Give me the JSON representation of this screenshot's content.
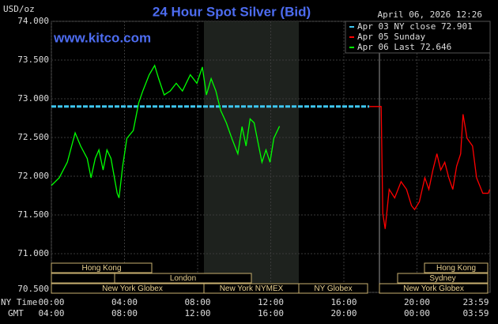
{
  "chart_data": {
    "type": "line",
    "title": "24 Hour Spot Silver (Bid)",
    "unit_label": "USD/oz",
    "timestamp": "April 06, 2026 12:26",
    "site": "www.kitco.com",
    "xlim": [
      0,
      24
    ],
    "ylim": [
      70.5,
      74
    ],
    "yticks": [
      {
        "value": 70.5,
        "label": "70.500"
      },
      {
        "value": 71,
        "label": "71.000"
      },
      {
        "value": 71.5,
        "label": "71.500"
      },
      {
        "value": 72,
        "label": "72.000"
      },
      {
        "value": 72.5,
        "label": "72.500"
      },
      {
        "value": 73,
        "label": "73.000"
      },
      {
        "value": 73.5,
        "label": "73.500"
      },
      {
        "value": 74,
        "label": "74.000"
      }
    ],
    "xticks": [
      {
        "value": 0,
        "label": "00:00"
      },
      {
        "value": 4,
        "label": "04:00"
      },
      {
        "value": 8,
        "label": "08:00"
      },
      {
        "value": 12,
        "label": "12:00"
      },
      {
        "value": 16,
        "label": "16:00"
      },
      {
        "value": 20,
        "label": "20:00"
      },
      {
        "value": 23.983,
        "label": "23:59"
      }
    ],
    "xticks_gmt": [
      "04:00",
      "08:00",
      "12:00",
      "16:00",
      "20:00",
      "00:00",
      "03:59"
    ],
    "x_axis_labels": [
      "NY Time",
      "GMT"
    ],
    "sessions": [
      "Hong Kong",
      "London",
      "New York Globex",
      "New York NYMEX",
      "NY Globex",
      "Hong Kong",
      "Sydney",
      "New York Globex"
    ],
    "series": [
      {
        "name": "Apr 03 NY close 72.901",
        "color": "#3ec6f0",
        "dashed": true,
        "x": [
          0,
          17.39
        ],
        "values": [
          72.901,
          72.901
        ]
      },
      {
        "name": "Apr 05 Sunday",
        "color": "#ff0000",
        "dashed": false,
        "x": [
          17.39,
          18.04,
          18.13,
          18.26,
          18.48,
          18.78,
          19.13,
          19.43,
          19.7,
          19.87,
          20.13,
          20.43,
          20.65,
          20.87,
          21.09,
          21.3,
          21.52,
          21.74,
          21.96,
          22.17,
          22.39,
          22.52,
          22.74,
          23.04,
          23.26,
          23.6,
          23.9,
          23.98
        ],
        "values": [
          72.9,
          72.9,
          71.52,
          71.32,
          71.83,
          71.72,
          71.93,
          71.83,
          71.62,
          71.57,
          71.67,
          71.98,
          71.83,
          72.08,
          72.29,
          72.08,
          72.18,
          71.98,
          71.83,
          72.13,
          72.29,
          72.8,
          72.49,
          72.39,
          71.98,
          71.78,
          71.78,
          71.83
        ]
      },
      {
        "name": "Apr 06 Last 72.646",
        "color": "#00ff00",
        "dashed": false,
        "x": [
          0,
          0.43,
          0.87,
          1.3,
          1.6,
          1.96,
          2.17,
          2.4,
          2.6,
          2.83,
          3.04,
          3.26,
          3.6,
          3.7,
          3.9,
          4.13,
          4.48,
          4.78,
          5.0,
          5.35,
          5.65,
          5.87,
          6.17,
          6.5,
          6.83,
          7.17,
          7.6,
          7.96,
          8.26,
          8.48,
          8.74,
          9.0,
          9.26,
          9.57,
          9.87,
          10.2,
          10.43,
          10.65,
          10.87,
          11.09,
          11.3,
          11.52,
          11.74,
          11.96,
          12.17,
          12.48
        ],
        "values": [
          71.88,
          71.98,
          72.18,
          72.56,
          72.39,
          72.23,
          71.98,
          72.23,
          72.34,
          72.08,
          72.34,
          72.23,
          71.78,
          71.72,
          72.13,
          72.49,
          72.59,
          72.95,
          73.1,
          73.31,
          73.43,
          73.26,
          73.05,
          73.1,
          73.2,
          73.1,
          73.31,
          73.2,
          73.41,
          73.05,
          73.26,
          73.1,
          72.85,
          72.69,
          72.49,
          72.29,
          72.64,
          72.39,
          72.74,
          72.69,
          72.44,
          72.18,
          72.34,
          72.18,
          72.49,
          72.646
        ]
      }
    ]
  }
}
